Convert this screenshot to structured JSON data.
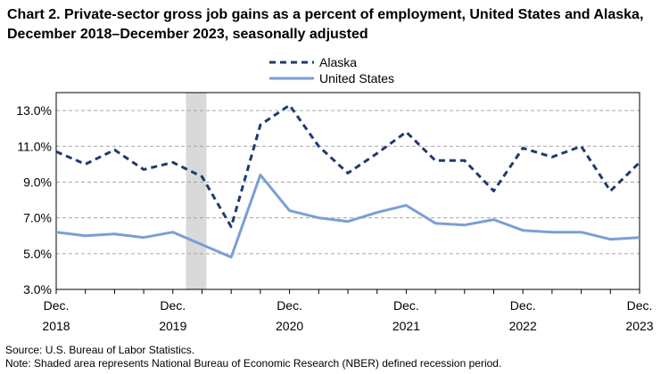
{
  "title": "Chart 2. Private-sector gross job gains as a percent of employment, United States and Alaska, December 2018–December 2023, seasonally adjusted",
  "source": "Source: U.S. Bureau of Labor Statistics.",
  "note": "Note: Shaded area represents National Bureau of Economic Research (NBER) defined recession period.",
  "chart_data": {
    "type": "line",
    "title": "Chart 2. Private-sector gross job gains as a percent of employment, United States and Alaska, December 2018–December 2023, seasonally adjusted",
    "xlabel": "",
    "ylabel": "",
    "x": [
      "Dec. 2018",
      "Mar. 2019",
      "Jun. 2019",
      "Sep. 2019",
      "Dec. 2019",
      "Mar. 2020",
      "Jun. 2020",
      "Sep. 2020",
      "Dec. 2020",
      "Mar. 2021",
      "Jun. 2021",
      "Sep. 2021",
      "Dec. 2021",
      "Mar. 2022",
      "Jun. 2022",
      "Sep. 2022",
      "Dec. 2022",
      "Mar. 2023",
      "Jun. 2023",
      "Sep. 2023",
      "Dec. 2023"
    ],
    "x_tick_labels": [
      {
        "index": 0,
        "line1": "Dec.",
        "line2": "2018"
      },
      {
        "index": 4,
        "line1": "Dec.",
        "line2": "2019"
      },
      {
        "index": 8,
        "line1": "Dec.",
        "line2": "2020"
      },
      {
        "index": 12,
        "line1": "Dec.",
        "line2": "2021"
      },
      {
        "index": 16,
        "line1": "Dec.",
        "line2": "2022"
      },
      {
        "index": 20,
        "line1": "Dec.",
        "line2": "2023"
      }
    ],
    "y_ticks": [
      "3.0%",
      "5.0%",
      "7.0%",
      "9.0%",
      "11.0%",
      "13.0%"
    ],
    "y_tick_values": [
      3,
      5,
      7,
      9,
      11,
      13
    ],
    "ylim": [
      3,
      14
    ],
    "grid": true,
    "legend_position": "top-center",
    "recession_period": {
      "start_index": 4.45,
      "end_index": 5.15
    },
    "series": [
      {
        "name": "Alaska",
        "style": "dashed",
        "color": "#1f3a6e",
        "values": [
          10.7,
          10.0,
          10.8,
          9.7,
          10.1,
          9.3,
          6.5,
          12.2,
          13.3,
          11.0,
          9.5,
          10.6,
          11.8,
          10.2,
          10.2,
          8.5,
          10.9,
          10.4,
          11.0,
          8.5,
          10.1
        ]
      },
      {
        "name": "United States",
        "style": "solid",
        "color": "#7b9fd6",
        "values": [
          6.2,
          6.0,
          6.1,
          5.9,
          6.2,
          5.5,
          4.8,
          9.4,
          7.4,
          7.0,
          6.8,
          7.3,
          7.7,
          6.7,
          6.6,
          6.9,
          6.3,
          6.2,
          6.2,
          5.8,
          5.9
        ]
      }
    ]
  }
}
